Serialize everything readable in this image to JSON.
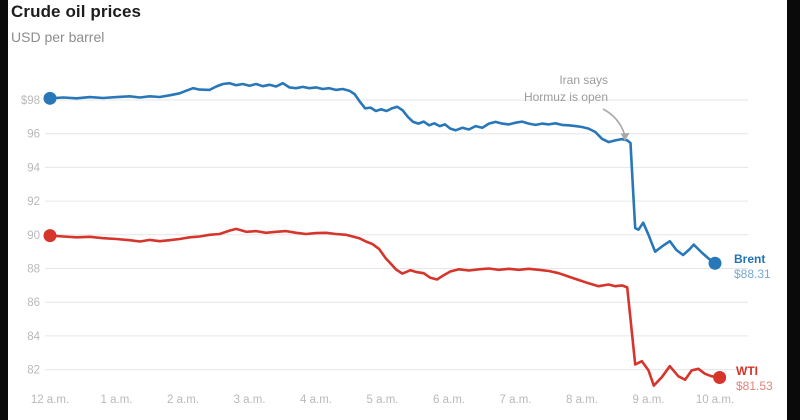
{
  "header": {
    "title": "Crude oil prices",
    "subtitle": "USD per barrel"
  },
  "annotation": {
    "line1": "Iran says",
    "line2": "Hormuz is open"
  },
  "colors": {
    "brent": "#2878b9",
    "brent_label": "#2273b4",
    "wti": "#d6352b",
    "wti_label": "#cf3529",
    "grid": "#e6e6e6",
    "tick": "#b9b9b9",
    "annotation": "#9b9b9b",
    "arrow": "#a8a8a8",
    "title": "#1d1d1d",
    "subtitle": "#8d8d8d"
  },
  "chart_data": {
    "type": "line",
    "title": "Crude oil prices",
    "subtitle": "USD per barrel",
    "xlabel": "",
    "ylabel": "USD per barrel",
    "grid": "horizontal",
    "legend_position": "line-end-right",
    "x_axis": {
      "unit": "hour of day",
      "range_hours": [
        0,
        10
      ],
      "ticks": [
        {
          "label": "12 a.m.",
          "hour": 0
        },
        {
          "label": "1 a.m.",
          "hour": 1
        },
        {
          "label": "2 a.m.",
          "hour": 2
        },
        {
          "label": "3 a.m.",
          "hour": 3
        },
        {
          "label": "4 a.m.",
          "hour": 4
        },
        {
          "label": "5 a.m.",
          "hour": 5
        },
        {
          "label": "6 a.m.",
          "hour": 6
        },
        {
          "label": "7 a.m.",
          "hour": 7
        },
        {
          "label": "8 a.m.",
          "hour": 8
        },
        {
          "label": "9 a.m.",
          "hour": 9
        },
        {
          "label": "10 a.m.",
          "hour": 10
        }
      ]
    },
    "y_axis": {
      "unit": "USD per barrel",
      "ylim": [
        81,
        99.5
      ],
      "ticks": [
        {
          "label": "$98",
          "value": 98
        },
        {
          "label": "96",
          "value": 96
        },
        {
          "label": "94",
          "value": 94
        },
        {
          "label": "92",
          "value": 92
        },
        {
          "label": "90",
          "value": 90
        },
        {
          "label": "88",
          "value": 88
        },
        {
          "label": "86",
          "value": 86
        },
        {
          "label": "84",
          "value": 84
        },
        {
          "label": "82",
          "value": 82
        }
      ]
    },
    "annotation": {
      "line1": "Iran says",
      "line2": "Hormuz is open",
      "points_to": {
        "series": "Brent",
        "hour": 8.7,
        "value": 95.6
      }
    },
    "series": [
      {
        "name": "Brent",
        "end_value_label": "$88.31",
        "end_value": 88.31,
        "color": "#2878b9",
        "points": [
          [
            0,
            98.1
          ],
          [
            0.2,
            98.15
          ],
          [
            0.4,
            98.1
          ],
          [
            0.6,
            98.17
          ],
          [
            0.8,
            98.12
          ],
          [
            1.0,
            98.17
          ],
          [
            1.2,
            98.22
          ],
          [
            1.35,
            98.15
          ],
          [
            1.5,
            98.22
          ],
          [
            1.65,
            98.18
          ],
          [
            1.8,
            98.28
          ],
          [
            1.95,
            98.4
          ],
          [
            2.05,
            98.55
          ],
          [
            2.15,
            98.7
          ],
          [
            2.25,
            98.62
          ],
          [
            2.4,
            98.6
          ],
          [
            2.5,
            98.8
          ],
          [
            2.6,
            98.95
          ],
          [
            2.7,
            99.0
          ],
          [
            2.8,
            98.88
          ],
          [
            2.9,
            98.95
          ],
          [
            3.0,
            98.85
          ],
          [
            3.1,
            98.95
          ],
          [
            3.2,
            98.82
          ],
          [
            3.3,
            98.9
          ],
          [
            3.4,
            98.8
          ],
          [
            3.5,
            99.0
          ],
          [
            3.6,
            98.75
          ],
          [
            3.7,
            98.7
          ],
          [
            3.8,
            98.78
          ],
          [
            3.9,
            98.7
          ],
          [
            4.0,
            98.75
          ],
          [
            4.1,
            98.65
          ],
          [
            4.2,
            98.7
          ],
          [
            4.3,
            98.6
          ],
          [
            4.4,
            98.65
          ],
          [
            4.5,
            98.55
          ],
          [
            4.58,
            98.35
          ],
          [
            4.66,
            97.9
          ],
          [
            4.74,
            97.5
          ],
          [
            4.82,
            97.55
          ],
          [
            4.9,
            97.35
          ],
          [
            4.98,
            97.45
          ],
          [
            5.06,
            97.35
          ],
          [
            5.14,
            97.5
          ],
          [
            5.22,
            97.6
          ],
          [
            5.3,
            97.4
          ],
          [
            5.38,
            97.0
          ],
          [
            5.46,
            96.7
          ],
          [
            5.54,
            96.6
          ],
          [
            5.62,
            96.72
          ],
          [
            5.7,
            96.5
          ],
          [
            5.78,
            96.62
          ],
          [
            5.86,
            96.45
          ],
          [
            5.94,
            96.55
          ],
          [
            6.02,
            96.3
          ],
          [
            6.1,
            96.2
          ],
          [
            6.2,
            96.35
          ],
          [
            6.3,
            96.25
          ],
          [
            6.4,
            96.45
          ],
          [
            6.5,
            96.35
          ],
          [
            6.6,
            96.6
          ],
          [
            6.7,
            96.7
          ],
          [
            6.8,
            96.6
          ],
          [
            6.9,
            96.55
          ],
          [
            7.0,
            96.65
          ],
          [
            7.1,
            96.72
          ],
          [
            7.2,
            96.6
          ],
          [
            7.3,
            96.52
          ],
          [
            7.4,
            96.6
          ],
          [
            7.5,
            96.55
          ],
          [
            7.6,
            96.62
          ],
          [
            7.7,
            96.52
          ],
          [
            7.8,
            96.5
          ],
          [
            7.9,
            96.45
          ],
          [
            8.0,
            96.4
          ],
          [
            8.1,
            96.3
          ],
          [
            8.2,
            96.1
          ],
          [
            8.3,
            95.7
          ],
          [
            8.4,
            95.5
          ],
          [
            8.5,
            95.6
          ],
          [
            8.6,
            95.68
          ],
          [
            8.68,
            95.6
          ],
          [
            8.73,
            95.45
          ],
          [
            8.77,
            92.5
          ],
          [
            8.8,
            90.4
          ],
          [
            8.85,
            90.3
          ],
          [
            8.92,
            90.72
          ],
          [
            9.0,
            90.0
          ],
          [
            9.1,
            89.0
          ],
          [
            9.2,
            89.3
          ],
          [
            9.32,
            89.62
          ],
          [
            9.42,
            89.1
          ],
          [
            9.52,
            88.8
          ],
          [
            9.62,
            89.15
          ],
          [
            9.68,
            89.42
          ],
          [
            9.8,
            88.95
          ],
          [
            9.9,
            88.6
          ],
          [
            10.0,
            88.31
          ]
        ]
      },
      {
        "name": "WTI",
        "end_value_label": "$81.53",
        "end_value": 81.53,
        "color": "#d6352b",
        "points": [
          [
            0,
            89.95
          ],
          [
            0.2,
            89.9
          ],
          [
            0.4,
            89.85
          ],
          [
            0.6,
            89.88
          ],
          [
            0.8,
            89.8
          ],
          [
            1.0,
            89.75
          ],
          [
            1.2,
            89.68
          ],
          [
            1.35,
            89.6
          ],
          [
            1.5,
            89.7
          ],
          [
            1.65,
            89.62
          ],
          [
            1.8,
            89.68
          ],
          [
            1.95,
            89.75
          ],
          [
            2.1,
            89.85
          ],
          [
            2.25,
            89.9
          ],
          [
            2.4,
            90.0
          ],
          [
            2.55,
            90.05
          ],
          [
            2.7,
            90.25
          ],
          [
            2.8,
            90.35
          ],
          [
            2.95,
            90.18
          ],
          [
            3.1,
            90.22
          ],
          [
            3.25,
            90.12
          ],
          [
            3.4,
            90.18
          ],
          [
            3.55,
            90.22
          ],
          [
            3.7,
            90.12
          ],
          [
            3.85,
            90.05
          ],
          [
            4.0,
            90.1
          ],
          [
            4.15,
            90.12
          ],
          [
            4.3,
            90.05
          ],
          [
            4.45,
            90.0
          ],
          [
            4.55,
            89.9
          ],
          [
            4.65,
            89.8
          ],
          [
            4.75,
            89.6
          ],
          [
            4.85,
            89.45
          ],
          [
            4.95,
            89.15
          ],
          [
            5.05,
            88.6
          ],
          [
            5.12,
            88.3
          ],
          [
            5.2,
            87.95
          ],
          [
            5.3,
            87.7
          ],
          [
            5.42,
            87.9
          ],
          [
            5.52,
            87.78
          ],
          [
            5.62,
            87.72
          ],
          [
            5.72,
            87.45
          ],
          [
            5.82,
            87.35
          ],
          [
            5.92,
            87.6
          ],
          [
            6.02,
            87.82
          ],
          [
            6.15,
            87.95
          ],
          [
            6.3,
            87.88
          ],
          [
            6.45,
            87.95
          ],
          [
            6.6,
            88.0
          ],
          [
            6.75,
            87.92
          ],
          [
            6.9,
            87.98
          ],
          [
            7.05,
            87.92
          ],
          [
            7.2,
            87.98
          ],
          [
            7.35,
            87.92
          ],
          [
            7.5,
            87.85
          ],
          [
            7.65,
            87.72
          ],
          [
            7.8,
            87.52
          ],
          [
            7.95,
            87.32
          ],
          [
            8.1,
            87.12
          ],
          [
            8.25,
            86.95
          ],
          [
            8.4,
            87.05
          ],
          [
            8.5,
            86.95
          ],
          [
            8.6,
            87.0
          ],
          [
            8.68,
            86.88
          ],
          [
            8.74,
            84.6
          ],
          [
            8.8,
            82.3
          ],
          [
            8.9,
            82.5
          ],
          [
            9.0,
            81.95
          ],
          [
            9.08,
            81.05
          ],
          [
            9.2,
            81.55
          ],
          [
            9.32,
            82.2
          ],
          [
            9.45,
            81.6
          ],
          [
            9.55,
            81.4
          ],
          [
            9.65,
            81.95
          ],
          [
            9.75,
            82.05
          ],
          [
            9.85,
            81.75
          ],
          [
            9.95,
            81.6
          ],
          [
            10.07,
            81.53
          ]
        ]
      }
    ]
  }
}
